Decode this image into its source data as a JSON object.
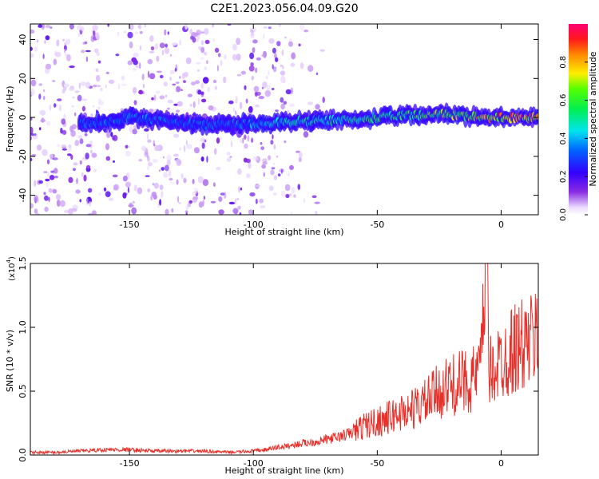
{
  "figure": {
    "title": "C2E1.2023.056.04.09.G20"
  },
  "chart_data": [
    {
      "type": "heatmap",
      "xlabel": "Height of straight line (km)",
      "ylabel": "Frequency (Hz)",
      "xlim": [
        -190,
        15
      ],
      "ylim": [
        -50,
        48
      ],
      "xticks": [
        -150,
        -100,
        -50,
        0
      ],
      "yticks": [
        -40,
        -20,
        0,
        20,
        40
      ],
      "colorbar": {
        "label": "Normalized spectral amplitude",
        "range": [
          0.0,
          1.0
        ],
        "ticks": [
          "0.0",
          "0.2",
          "0.4",
          "0.6",
          "0.8"
        ],
        "colormap": "rainbow (white-purple-blue-cyan-green-yellow-orange-red-magenta)"
      },
      "ridge": {
        "description": "signal concentrated near 0 Hz",
        "points": [
          {
            "x": -165,
            "freq": -3,
            "amp": 0.35
          },
          {
            "x": -150,
            "freq": 0,
            "amp": 0.4
          },
          {
            "x": -120,
            "freq": -4,
            "amp": 0.35
          },
          {
            "x": -100,
            "freq": -3,
            "amp": 0.4
          },
          {
            "x": -80,
            "freq": -2,
            "amp": 0.5
          },
          {
            "x": -60,
            "freq": -1,
            "amp": 0.55
          },
          {
            "x": -40,
            "freq": 1,
            "amp": 0.6
          },
          {
            "x": -25,
            "freq": 2,
            "amp": 0.7
          },
          {
            "x": -10,
            "freq": 0,
            "amp": 0.8
          },
          {
            "x": 0,
            "freq": 0,
            "amp": 0.9
          },
          {
            "x": 12,
            "freq": 0,
            "amp": 0.85
          }
        ]
      },
      "colors": {
        "ridge_core": "#ee1111",
        "ridge_mid": "#22dd44",
        "ridge_edge": "#2211cc",
        "noise": "#6a00e0"
      }
    },
    {
      "type": "line",
      "xlabel": "Height of straight line (km)",
      "ylabel": "SNR (10 * v/v)",
      "yscale_label": "(x10",
      "yscale_exp": "4",
      "yscale_close": ")",
      "xlim": [
        -190,
        15
      ],
      "ylim": [
        0,
        1.5
      ],
      "xticks": [
        -150,
        -100,
        -50,
        0
      ],
      "yticks": [
        "0.0",
        "0.5",
        "1.0",
        "1.5"
      ],
      "series": [
        {
          "color": "#e8302a",
          "x": [
            -190,
            -180,
            -170,
            -160,
            -150,
            -140,
            -130,
            -120,
            -110,
            -100,
            -95,
            -90,
            -85,
            -80,
            -75,
            -70,
            -65,
            -60,
            -55,
            -50,
            -45,
            -40,
            -35,
            -30,
            -25,
            -20,
            -15,
            -10,
            -8,
            -6,
            -5,
            -3,
            0,
            5,
            10,
            15
          ],
          "y": [
            0.02,
            0.02,
            0.03,
            0.04,
            0.04,
            0.03,
            0.03,
            0.03,
            0.02,
            0.03,
            0.04,
            0.06,
            0.07,
            0.09,
            0.1,
            0.12,
            0.14,
            0.17,
            0.22,
            0.25,
            0.28,
            0.32,
            0.35,
            0.4,
            0.48,
            0.52,
            0.55,
            0.58,
            0.7,
            1.5,
            0.6,
            0.65,
            0.7,
            0.8,
            0.82,
            0.9
          ]
        }
      ]
    }
  ]
}
